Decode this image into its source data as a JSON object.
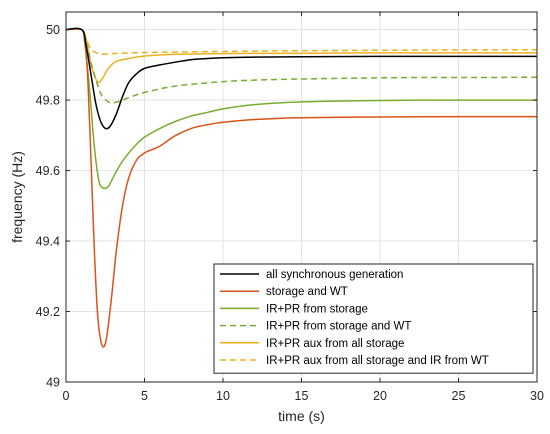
{
  "chart_data": {
    "type": "line",
    "title": "",
    "xlabel": "time (s)",
    "ylabel": "frequency (Hz)",
    "xlim": [
      0,
      30
    ],
    "ylim": [
      49,
      50.05
    ],
    "xticks": [
      0,
      5,
      10,
      15,
      20,
      25,
      30
    ],
    "yticks": [
      49,
      49.2,
      49.4,
      49.6,
      49.8,
      50
    ],
    "ytick_labels": [
      "49",
      "49.2",
      "49.4",
      "49.6",
      "49.8",
      "50"
    ],
    "grid": true,
    "legend_position": "bottom-right",
    "series": [
      {
        "name": "all synchronous generation",
        "color": "#000000",
        "dash": "solid",
        "points": [
          [
            0,
            50
          ],
          [
            1,
            50
          ],
          [
            1.3,
            49.95
          ],
          [
            1.6,
            49.87
          ],
          [
            1.9,
            49.79
          ],
          [
            2.2,
            49.74
          ],
          [
            2.5,
            49.72
          ],
          [
            2.8,
            49.725
          ],
          [
            3.2,
            49.76
          ],
          [
            3.6,
            49.81
          ],
          [
            4,
            49.85
          ],
          [
            4.5,
            49.875
          ],
          [
            5,
            49.89
          ],
          [
            6,
            49.9
          ],
          [
            7,
            49.908
          ],
          [
            8,
            49.915
          ],
          [
            9,
            49.918
          ],
          [
            10,
            49.92
          ],
          [
            12,
            49.922
          ],
          [
            15,
            49.923
          ],
          [
            20,
            49.924
          ],
          [
            25,
            49.924
          ],
          [
            30,
            49.924
          ]
        ]
      },
      {
        "name": "storage and WT",
        "color": "#d95319",
        "dash": "solid",
        "points": [
          [
            0,
            50
          ],
          [
            1,
            50
          ],
          [
            1.2,
            49.97
          ],
          [
            1.4,
            49.85
          ],
          [
            1.6,
            49.62
          ],
          [
            1.8,
            49.38
          ],
          [
            2,
            49.2
          ],
          [
            2.2,
            49.12
          ],
          [
            2.4,
            49.1
          ],
          [
            2.6,
            49.13
          ],
          [
            2.9,
            49.24
          ],
          [
            3.2,
            49.37
          ],
          [
            3.6,
            49.5
          ],
          [
            4,
            49.58
          ],
          [
            4.5,
            49.63
          ],
          [
            5,
            49.65
          ],
          [
            5.5,
            49.66
          ],
          [
            6,
            49.67
          ],
          [
            7,
            49.7
          ],
          [
            8,
            49.72
          ],
          [
            9,
            49.73
          ],
          [
            10,
            49.737
          ],
          [
            12,
            49.745
          ],
          [
            15,
            49.75
          ],
          [
            20,
            49.752
          ],
          [
            25,
            49.753
          ],
          [
            30,
            49.753
          ]
        ]
      },
      {
        "name": "IR+PR from storage",
        "color": "#77ac30",
        "dash": "solid",
        "points": [
          [
            0,
            50
          ],
          [
            1,
            50
          ],
          [
            1.2,
            49.96
          ],
          [
            1.5,
            49.83
          ],
          [
            1.8,
            49.67
          ],
          [
            2.1,
            49.57
          ],
          [
            2.4,
            49.55
          ],
          [
            2.7,
            49.555
          ],
          [
            3,
            49.58
          ],
          [
            3.5,
            49.62
          ],
          [
            4,
            49.65
          ],
          [
            4.5,
            49.675
          ],
          [
            5,
            49.695
          ],
          [
            6,
            49.72
          ],
          [
            7,
            49.74
          ],
          [
            8,
            49.755
          ],
          [
            9,
            49.765
          ],
          [
            10,
            49.775
          ],
          [
            12,
            49.787
          ],
          [
            15,
            49.795
          ],
          [
            20,
            49.799
          ],
          [
            25,
            49.8
          ],
          [
            30,
            49.8
          ]
        ]
      },
      {
        "name": "IR+PR from storage and WT",
        "color": "#77ac30",
        "dash": "dashed",
        "points": [
          [
            0,
            50
          ],
          [
            1,
            50
          ],
          [
            1.3,
            49.96
          ],
          [
            1.7,
            49.89
          ],
          [
            2.2,
            49.82
          ],
          [
            2.7,
            49.795
          ],
          [
            3.1,
            49.793
          ],
          [
            3.6,
            49.8
          ],
          [
            4.5,
            49.815
          ],
          [
            5.5,
            49.827
          ],
          [
            7,
            49.84
          ],
          [
            9,
            49.849
          ],
          [
            11,
            49.855
          ],
          [
            14,
            49.859
          ],
          [
            18,
            49.862
          ],
          [
            22,
            49.864
          ],
          [
            26,
            49.864
          ],
          [
            30,
            49.865
          ]
        ]
      },
      {
        "name": "IR+PR aux from all storage",
        "color": "#edb120",
        "dash": "solid",
        "points": [
          [
            0,
            50
          ],
          [
            1,
            50
          ],
          [
            1.3,
            49.97
          ],
          [
            1.6,
            49.9
          ],
          [
            1.9,
            49.86
          ],
          [
            2.1,
            49.85
          ],
          [
            2.3,
            49.86
          ],
          [
            2.7,
            49.89
          ],
          [
            3.2,
            49.91
          ],
          [
            4,
            49.918
          ],
          [
            5,
            49.925
          ],
          [
            7,
            49.93
          ],
          [
            10,
            49.932
          ],
          [
            15,
            49.933
          ],
          [
            20,
            49.934
          ],
          [
            25,
            49.934
          ],
          [
            30,
            49.934
          ]
        ]
      },
      {
        "name": "IR+PR aux from all storage and IR from WT",
        "color": "#edb120",
        "dash": "dashed",
        "points": [
          [
            0,
            50
          ],
          [
            1,
            50
          ],
          [
            1.3,
            49.97
          ],
          [
            1.6,
            49.945
          ],
          [
            1.9,
            49.935
          ],
          [
            2.3,
            49.93
          ],
          [
            3,
            49.932
          ],
          [
            5,
            49.935
          ],
          [
            8,
            49.937
          ],
          [
            12,
            49.939
          ],
          [
            18,
            49.941
          ],
          [
            24,
            49.942
          ],
          [
            30,
            49.943
          ]
        ]
      }
    ]
  }
}
